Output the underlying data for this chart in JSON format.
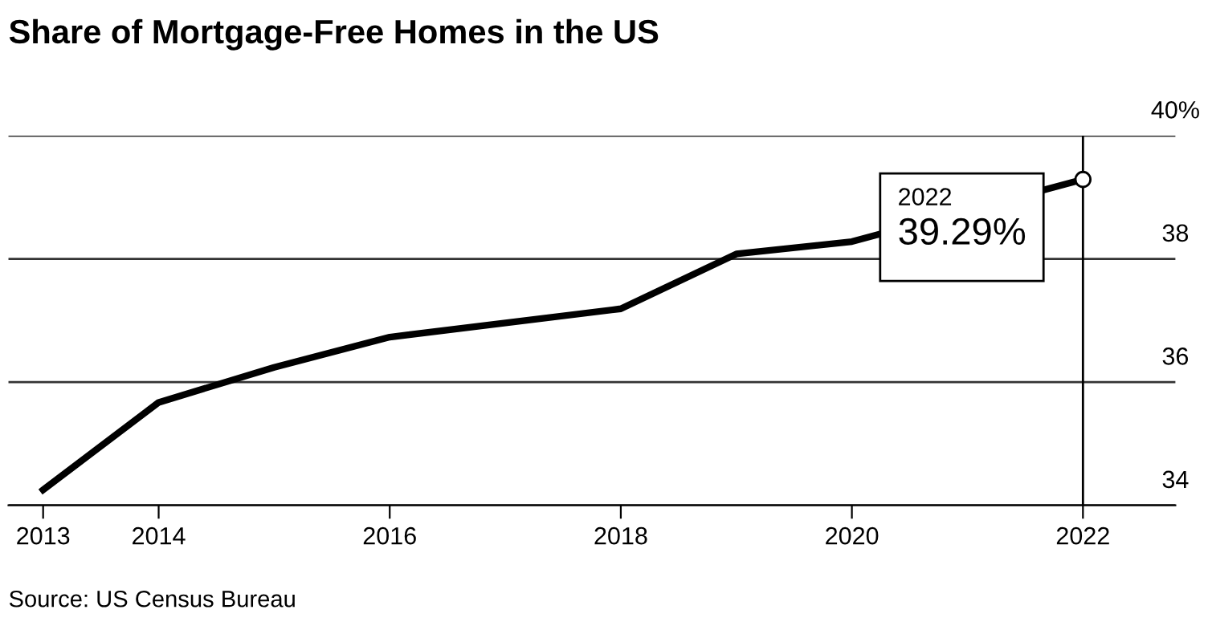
{
  "chart_data": {
    "type": "line",
    "title": "Share of Mortgage-Free Homes in the US",
    "x": [
      2013,
      2014,
      2015,
      2016,
      2018,
      2019,
      2020,
      2021,
      2022
    ],
    "series": [
      {
        "color": "#000000",
        "values": [
          34.25,
          35.67,
          36.24,
          36.73,
          37.19,
          38.08,
          38.28,
          null,
          39.29
        ]
      },
      {
        "type": "scatter",
        "color": "#ffffff",
        "x": [
          2022
        ],
        "values": [
          39.29
        ]
      }
    ],
    "xlim": [
      2012.7,
      2022.8
    ],
    "xticks": [
      2013,
      2014,
      2016,
      2018,
      2020,
      2022
    ],
    "ylim": [
      34,
      40
    ],
    "yticks": [
      {
        "value": 34,
        "label": "34"
      },
      {
        "value": 36,
        "label": "36"
      },
      {
        "value": 38,
        "label": "38"
      },
      {
        "value": 40,
        "label": "40%"
      }
    ],
    "grid": "y",
    "ref_lines": [
      {
        "axis": "x",
        "value": 2022,
        "color": "#000000"
      }
    ],
    "annotations": [
      "2022",
      "39.29%",
      "Source: US Census Bureau"
    ]
  }
}
